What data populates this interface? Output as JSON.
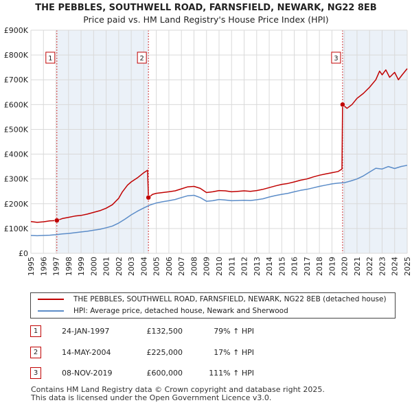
{
  "title": "THE PEBBLES, SOUTHWELL ROAD, FARNSFIELD, NEWARK, NG22 8EB",
  "subtitle": "Price paid vs. HM Land Registry's House Price Index (HPI)",
  "colors": {
    "property": "#c00000",
    "hpi": "#5b8cc8",
    "shade": "#dbe5f3"
  },
  "legend": {
    "property_label": "THE PEBBLES, SOUTHWELL ROAD, FARNSFIELD, NEWARK, NG22 8EB (detached house)",
    "hpi_label": "HPI: Average price, detached house, Newark and Sherwood"
  },
  "sales": [
    {
      "num": "1",
      "date": "24-JAN-1997",
      "price": "£132,500",
      "hpi": "79% ↑ HPI"
    },
    {
      "num": "2",
      "date": "14-MAY-2004",
      "price": "£225,000",
      "hpi": "17% ↑ HPI"
    },
    {
      "num": "3",
      "date": "08-NOV-2019",
      "price": "£600,000",
      "hpi": "111% ↑ HPI"
    }
  ],
  "footer": {
    "line1": "Contains HM Land Registry data © Crown copyright and database right 2025.",
    "line2": "This data is licensed under the Open Government Licence v3.0."
  },
  "chart_data": {
    "type": "line",
    "title": "THE PEBBLES, SOUTHWELL ROAD, FARNSFIELD, NEWARK, NG22 8EB",
    "subtitle": "Price paid vs. HM Land Registry's House Price Index (HPI)",
    "xlim": [
      1995,
      2025
    ],
    "ylim": [
      0,
      900000
    ],
    "x_ticks": [
      1995,
      1996,
      1997,
      1998,
      1999,
      2000,
      2001,
      2002,
      2003,
      2004,
      2005,
      2006,
      2007,
      2008,
      2009,
      2010,
      2011,
      2012,
      2013,
      2014,
      2015,
      2016,
      2017,
      2018,
      2019,
      2020,
      2021,
      2022,
      2023,
      2024,
      2025
    ],
    "y_ticks": [
      {
        "value": 0,
        "label": "£0"
      },
      {
        "value": 100000,
        "label": "£100K"
      },
      {
        "value": 200000,
        "label": "£200K"
      },
      {
        "value": 300000,
        "label": "£300K"
      },
      {
        "value": 400000,
        "label": "£400K"
      },
      {
        "value": 500000,
        "label": "£500K"
      },
      {
        "value": 600000,
        "label": "£600K"
      },
      {
        "value": 700000,
        "label": "£700K"
      },
      {
        "value": 800000,
        "label": "£800K"
      },
      {
        "value": 900000,
        "label": "£900K"
      }
    ],
    "grid": true,
    "shaded_periods": [
      [
        1997.07,
        2004.37
      ],
      [
        2019.85,
        2025.0
      ]
    ],
    "sale_markers": [
      {
        "num": "1",
        "x": 1997.07,
        "y": 132500
      },
      {
        "num": "2",
        "x": 2004.37,
        "y": 225000
      },
      {
        "num": "3",
        "x": 2019.85,
        "y": 600000
      }
    ],
    "series": [
      {
        "name": "THE PEBBLES, SOUTHWELL ROAD, FARNSFIELD, NEWARK, NG22 8EB (detached house)",
        "color": "#c00000",
        "points": [
          [
            1995.0,
            128000
          ],
          [
            1995.5,
            125000
          ],
          [
            1996.0,
            127000
          ],
          [
            1996.5,
            131000
          ],
          [
            1997.07,
            132500
          ],
          [
            1997.5,
            140000
          ],
          [
            1998.0,
            145000
          ],
          [
            1998.5,
            150000
          ],
          [
            1999.0,
            153000
          ],
          [
            1999.5,
            158000
          ],
          [
            2000.0,
            165000
          ],
          [
            2000.5,
            172000
          ],
          [
            2001.0,
            182000
          ],
          [
            2001.5,
            196000
          ],
          [
            2002.0,
            222000
          ],
          [
            2002.3,
            248000
          ],
          [
            2002.7,
            275000
          ],
          [
            2003.0,
            288000
          ],
          [
            2003.5,
            305000
          ],
          [
            2004.0,
            325000
          ],
          [
            2004.3,
            335000
          ],
          [
            2004.37,
            225000
          ],
          [
            2004.7,
            238000
          ],
          [
            2005.0,
            242000
          ],
          [
            2005.5,
            245000
          ],
          [
            2006.0,
            248000
          ],
          [
            2006.5,
            252000
          ],
          [
            2007.0,
            260000
          ],
          [
            2007.5,
            268000
          ],
          [
            2008.0,
            270000
          ],
          [
            2008.5,
            262000
          ],
          [
            2009.0,
            245000
          ],
          [
            2009.5,
            248000
          ],
          [
            2010.0,
            253000
          ],
          [
            2010.5,
            252000
          ],
          [
            2011.0,
            248000
          ],
          [
            2011.5,
            250000
          ],
          [
            2012.0,
            252000
          ],
          [
            2012.5,
            250000
          ],
          [
            2013.0,
            253000
          ],
          [
            2013.5,
            258000
          ],
          [
            2014.0,
            265000
          ],
          [
            2014.5,
            272000
          ],
          [
            2015.0,
            278000
          ],
          [
            2015.5,
            282000
          ],
          [
            2016.0,
            288000
          ],
          [
            2016.5,
            295000
          ],
          [
            2017.0,
            300000
          ],
          [
            2017.5,
            308000
          ],
          [
            2018.0,
            315000
          ],
          [
            2018.5,
            320000
          ],
          [
            2019.0,
            325000
          ],
          [
            2019.5,
            330000
          ],
          [
            2019.8,
            340000
          ],
          [
            2019.85,
            600000
          ],
          [
            2020.2,
            585000
          ],
          [
            2020.6,
            600000
          ],
          [
            2021.0,
            625000
          ],
          [
            2021.5,
            645000
          ],
          [
            2022.0,
            670000
          ],
          [
            2022.5,
            700000
          ],
          [
            2022.8,
            735000
          ],
          [
            2023.0,
            720000
          ],
          [
            2023.3,
            740000
          ],
          [
            2023.6,
            710000
          ],
          [
            2024.0,
            730000
          ],
          [
            2024.3,
            700000
          ],
          [
            2024.6,
            720000
          ],
          [
            2025.0,
            745000
          ]
        ]
      },
      {
        "name": "HPI: Average price, detached house, Newark and Sherwood",
        "color": "#5b8cc8",
        "points": [
          [
            1995.0,
            72000
          ],
          [
            1995.5,
            71000
          ],
          [
            1996.0,
            72000
          ],
          [
            1996.5,
            73000
          ],
          [
            1997.0,
            75000
          ],
          [
            1997.5,
            78000
          ],
          [
            1998.0,
            80000
          ],
          [
            1998.5,
            83000
          ],
          [
            1999.0,
            86000
          ],
          [
            1999.5,
            89000
          ],
          [
            2000.0,
            93000
          ],
          [
            2000.5,
            97000
          ],
          [
            2001.0,
            103000
          ],
          [
            2001.5,
            110000
          ],
          [
            2002.0,
            122000
          ],
          [
            2002.5,
            138000
          ],
          [
            2003.0,
            155000
          ],
          [
            2003.5,
            170000
          ],
          [
            2004.0,
            183000
          ],
          [
            2004.5,
            195000
          ],
          [
            2005.0,
            203000
          ],
          [
            2005.5,
            208000
          ],
          [
            2006.0,
            212000
          ],
          [
            2006.5,
            217000
          ],
          [
            2007.0,
            225000
          ],
          [
            2007.5,
            232000
          ],
          [
            2008.0,
            234000
          ],
          [
            2008.5,
            225000
          ],
          [
            2009.0,
            210000
          ],
          [
            2009.5,
            212000
          ],
          [
            2010.0,
            217000
          ],
          [
            2010.5,
            215000
          ],
          [
            2011.0,
            212000
          ],
          [
            2011.5,
            213000
          ],
          [
            2012.0,
            214000
          ],
          [
            2012.5,
            213000
          ],
          [
            2013.0,
            216000
          ],
          [
            2013.5,
            220000
          ],
          [
            2014.0,
            227000
          ],
          [
            2014.5,
            233000
          ],
          [
            2015.0,
            238000
          ],
          [
            2015.5,
            242000
          ],
          [
            2016.0,
            248000
          ],
          [
            2016.5,
            254000
          ],
          [
            2017.0,
            258000
          ],
          [
            2017.5,
            264000
          ],
          [
            2018.0,
            270000
          ],
          [
            2018.5,
            275000
          ],
          [
            2019.0,
            280000
          ],
          [
            2019.5,
            283000
          ],
          [
            2020.0,
            285000
          ],
          [
            2020.5,
            292000
          ],
          [
            2021.0,
            300000
          ],
          [
            2021.5,
            312000
          ],
          [
            2022.0,
            328000
          ],
          [
            2022.5,
            343000
          ],
          [
            2023.0,
            340000
          ],
          [
            2023.5,
            350000
          ],
          [
            2024.0,
            342000
          ],
          [
            2024.5,
            350000
          ],
          [
            2025.0,
            355000
          ]
        ]
      }
    ]
  }
}
